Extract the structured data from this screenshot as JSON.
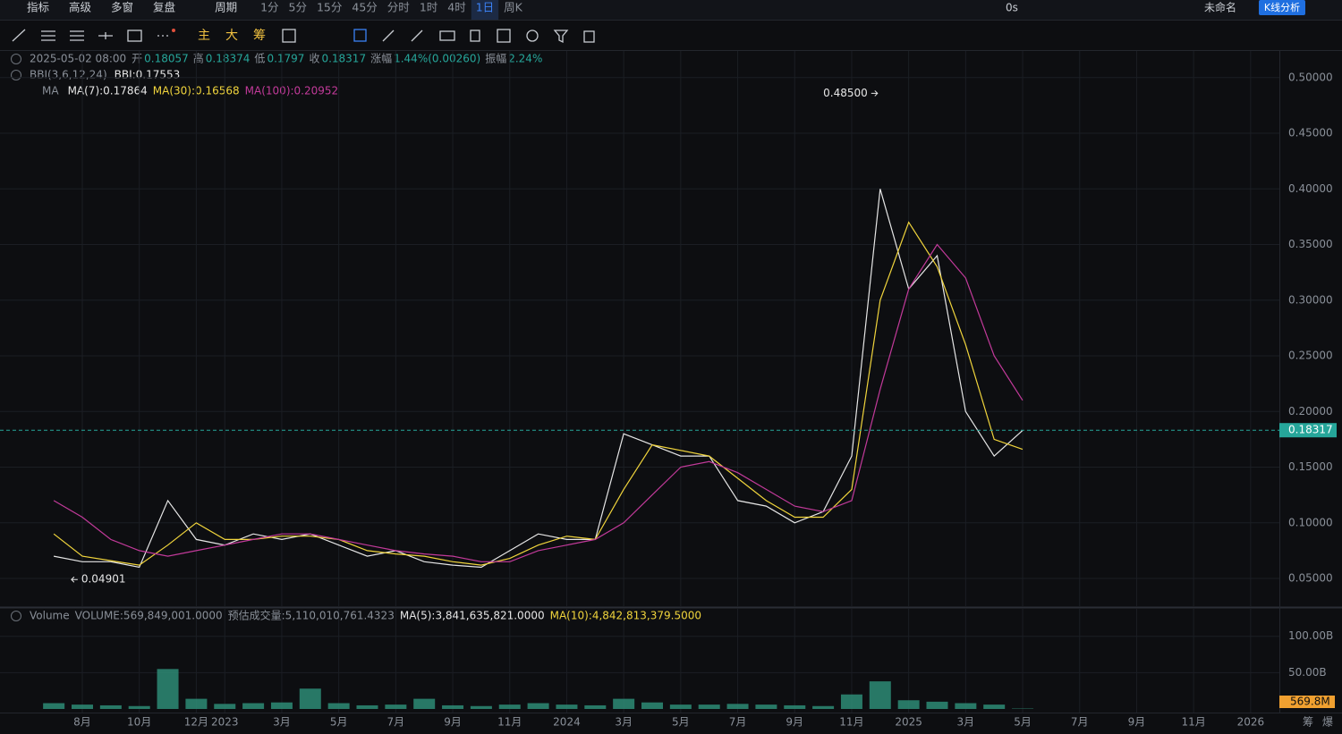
{
  "toolbar": {
    "left": [
      "指标",
      "高级",
      "多窗",
      "复盘",
      "周期"
    ],
    "periods": [
      "1分",
      "5分",
      "15分",
      "45分",
      "分时",
      "1时",
      "4时",
      "1日",
      "周K"
    ],
    "active_period": 7,
    "right": [
      "0s",
      "未命名"
    ],
    "button": "K线分析"
  },
  "drawing_tools": [
    "主",
    "大",
    "筹"
  ],
  "info": {
    "datetime": "2025-05-02 08:00",
    "fields": [
      {
        "label": "开",
        "value": 0.18057
      },
      {
        "label": "高",
        "value": 0.18374
      },
      {
        "label": "低",
        "value": 0.1797
      },
      {
        "label": "收",
        "value": 0.18317
      },
      {
        "label": "涨幅",
        "value": "1.44%(0.00260)"
      },
      {
        "label": "振幅",
        "value": "2.24%"
      }
    ],
    "bbi": [
      "BBI(3,6,12,24)",
      "BBI:0.17553"
    ],
    "ma_title": "MA",
    "ma_legend": [
      "MA(7):0.17864",
      "MA(30):0.16568",
      "MA(100):0.20952"
    ]
  },
  "chart_data": [
    {
      "type": "line",
      "x": [
        "2022-07",
        "2022-08",
        "2022-09",
        "2022-10",
        "2022-11",
        "2022-12",
        "2023-01",
        "2023-02",
        "2023-03",
        "2023-04",
        "2023-05",
        "2023-06",
        "2023-07",
        "2023-08",
        "2023-09",
        "2023-10",
        "2023-11",
        "2023-12",
        "2024-01",
        "2024-02",
        "2024-03",
        "2024-04",
        "2024-05",
        "2024-06",
        "2024-07",
        "2024-08",
        "2024-09",
        "2024-10",
        "2024-11",
        "2024-12",
        "2025-01",
        "2025-02",
        "2025-03",
        "2025-04",
        "2025-05"
      ],
      "series": [
        {
          "color": "#e6e6e6",
          "values": [
            0.07,
            0.065,
            0.065,
            0.06,
            0.12,
            0.085,
            0.08,
            0.09,
            0.085,
            0.09,
            0.08,
            0.07,
            0.075,
            0.065,
            0.062,
            0.06,
            0.075,
            0.09,
            0.085,
            0.085,
            0.18,
            0.17,
            0.16,
            0.16,
            0.12,
            0.115,
            0.1,
            0.11,
            0.16,
            0.4,
            0.31,
            0.34,
            0.2,
            0.16,
            0.183
          ]
        },
        {
          "color": "#f0d43c",
          "values": [
            0.09,
            0.07,
            0.066,
            0.062,
            0.08,
            0.1,
            0.085,
            0.085,
            0.088,
            0.088,
            0.085,
            0.075,
            0.072,
            0.07,
            0.065,
            0.062,
            0.068,
            0.08,
            0.088,
            0.085,
            0.13,
            0.17,
            0.165,
            0.16,
            0.14,
            0.12,
            0.105,
            0.105,
            0.13,
            0.3,
            0.37,
            0.33,
            0.26,
            0.175,
            0.166
          ]
        },
        {
          "color": "#c23a9a",
          "values": [
            0.12,
            0.105,
            0.085,
            0.075,
            0.07,
            0.075,
            0.08,
            0.085,
            0.09,
            0.09,
            0.085,
            0.08,
            0.075,
            0.072,
            0.07,
            0.065,
            0.065,
            0.075,
            0.08,
            0.085,
            0.1,
            0.125,
            0.15,
            0.155,
            0.145,
            0.13,
            0.115,
            0.11,
            0.12,
            0.22,
            0.31,
            0.35,
            0.32,
            0.25,
            0.21
          ]
        }
      ],
      "ylim": [
        0.0251,
        0.5239
      ],
      "yticks": [
        {
          "value": 0.05,
          "label": "0.05000"
        },
        {
          "value": 0.1,
          "label": "0.10000"
        },
        {
          "value": 0.15,
          "label": "0.15000"
        },
        {
          "value": 0.2,
          "label": "0.20000"
        },
        {
          "value": 0.25,
          "label": "0.25000"
        },
        {
          "value": 0.3,
          "label": "0.30000"
        },
        {
          "value": 0.35,
          "label": "0.35000"
        },
        {
          "value": 0.4,
          "label": "0.40000"
        },
        {
          "value": 0.45,
          "label": "0.45000"
        },
        {
          "value": 0.5,
          "label": "0.50000"
        }
      ],
      "xticks": [
        {
          "value": "2022-08",
          "label": "8月"
        },
        {
          "value": "2022-10",
          "label": "10月"
        },
        {
          "value": "2022-12",
          "label": "12月"
        },
        {
          "value": "2023-01",
          "label": "2023"
        },
        {
          "value": "2023-03",
          "label": "3月"
        },
        {
          "value": "2023-05",
          "label": "5月"
        },
        {
          "value": "2023-07",
          "label": "7月"
        },
        {
          "value": "2023-09",
          "label": "9月"
        },
        {
          "value": "2023-11",
          "label": "11月"
        },
        {
          "value": "2024-01",
          "label": "2024"
        },
        {
          "value": "2024-03",
          "label": "3月"
        },
        {
          "value": "2024-05",
          "label": "5月"
        },
        {
          "value": "2024-07",
          "label": "7月"
        },
        {
          "value": "2024-09",
          "label": "9月"
        },
        {
          "value": "2024-11",
          "label": "11月"
        },
        {
          "value": "2025-01",
          "label": "2025"
        },
        {
          "value": "2025-03",
          "label": "3月"
        },
        {
          "value": "2025-05",
          "label": "5月"
        },
        {
          "value": "2025-07",
          "label": "7月"
        },
        {
          "value": "2025-09",
          "label": "9月"
        },
        {
          "value": "2025-11",
          "label": "11月"
        },
        {
          "value": "2026-01",
          "label": "2026"
        }
      ],
      "high": {
        "x": "2024-12",
        "value": 0.485,
        "label": "0.48500"
      },
      "low": {
        "x": "2022-09",
        "value": 0.04901,
        "label": "0.04901"
      },
      "last_price": {
        "value": 0.18317,
        "label": "0.18317",
        "color": "#26a69a"
      },
      "grid": true
    },
    {
      "type": "bar",
      "header": [
        "Volume",
        "VOLUME:569,849,001.0000",
        "预估成交量:5,110,010,761.4323",
        "MA(5):3,841,635,821.0000",
        "MA(10):4,842,813,379.5000"
      ],
      "x": [
        "2022-07",
        "2022-08",
        "2022-09",
        "2022-10",
        "2022-11",
        "2022-12",
        "2023-01",
        "2023-02",
        "2023-03",
        "2023-04",
        "2023-05",
        "2023-06",
        "2023-07",
        "2023-08",
        "2023-09",
        "2023-10",
        "2023-11",
        "2023-12",
        "2024-01",
        "2024-02",
        "2024-03",
        "2024-04",
        "2024-05",
        "2024-06",
        "2024-07",
        "2024-08",
        "2024-09",
        "2024-10",
        "2024-11",
        "2024-12",
        "2025-01",
        "2025-02",
        "2025-03",
        "2025-04",
        "2025-05"
      ],
      "values": [
        8,
        6,
        5,
        4,
        55,
        14,
        7,
        8,
        9,
        28,
        8,
        5,
        6,
        14,
        5,
        4,
        6,
        8,
        6,
        5,
        14,
        9,
        6,
        6,
        7,
        6,
        5,
        4,
        20,
        38,
        12,
        10,
        8,
        6,
        0.5698
      ],
      "color": "#2e8b76",
      "ylim": [
        0,
        137.8
      ],
      "yticks": [
        {
          "value": 50,
          "label": "50.00B"
        },
        {
          "value": 100,
          "label": "100.00B"
        }
      ],
      "last": {
        "value": 0.5698,
        "label": "569.8M",
        "color": "#f0a030"
      },
      "bottom_right": [
        "筹",
        "爆"
      ]
    }
  ]
}
